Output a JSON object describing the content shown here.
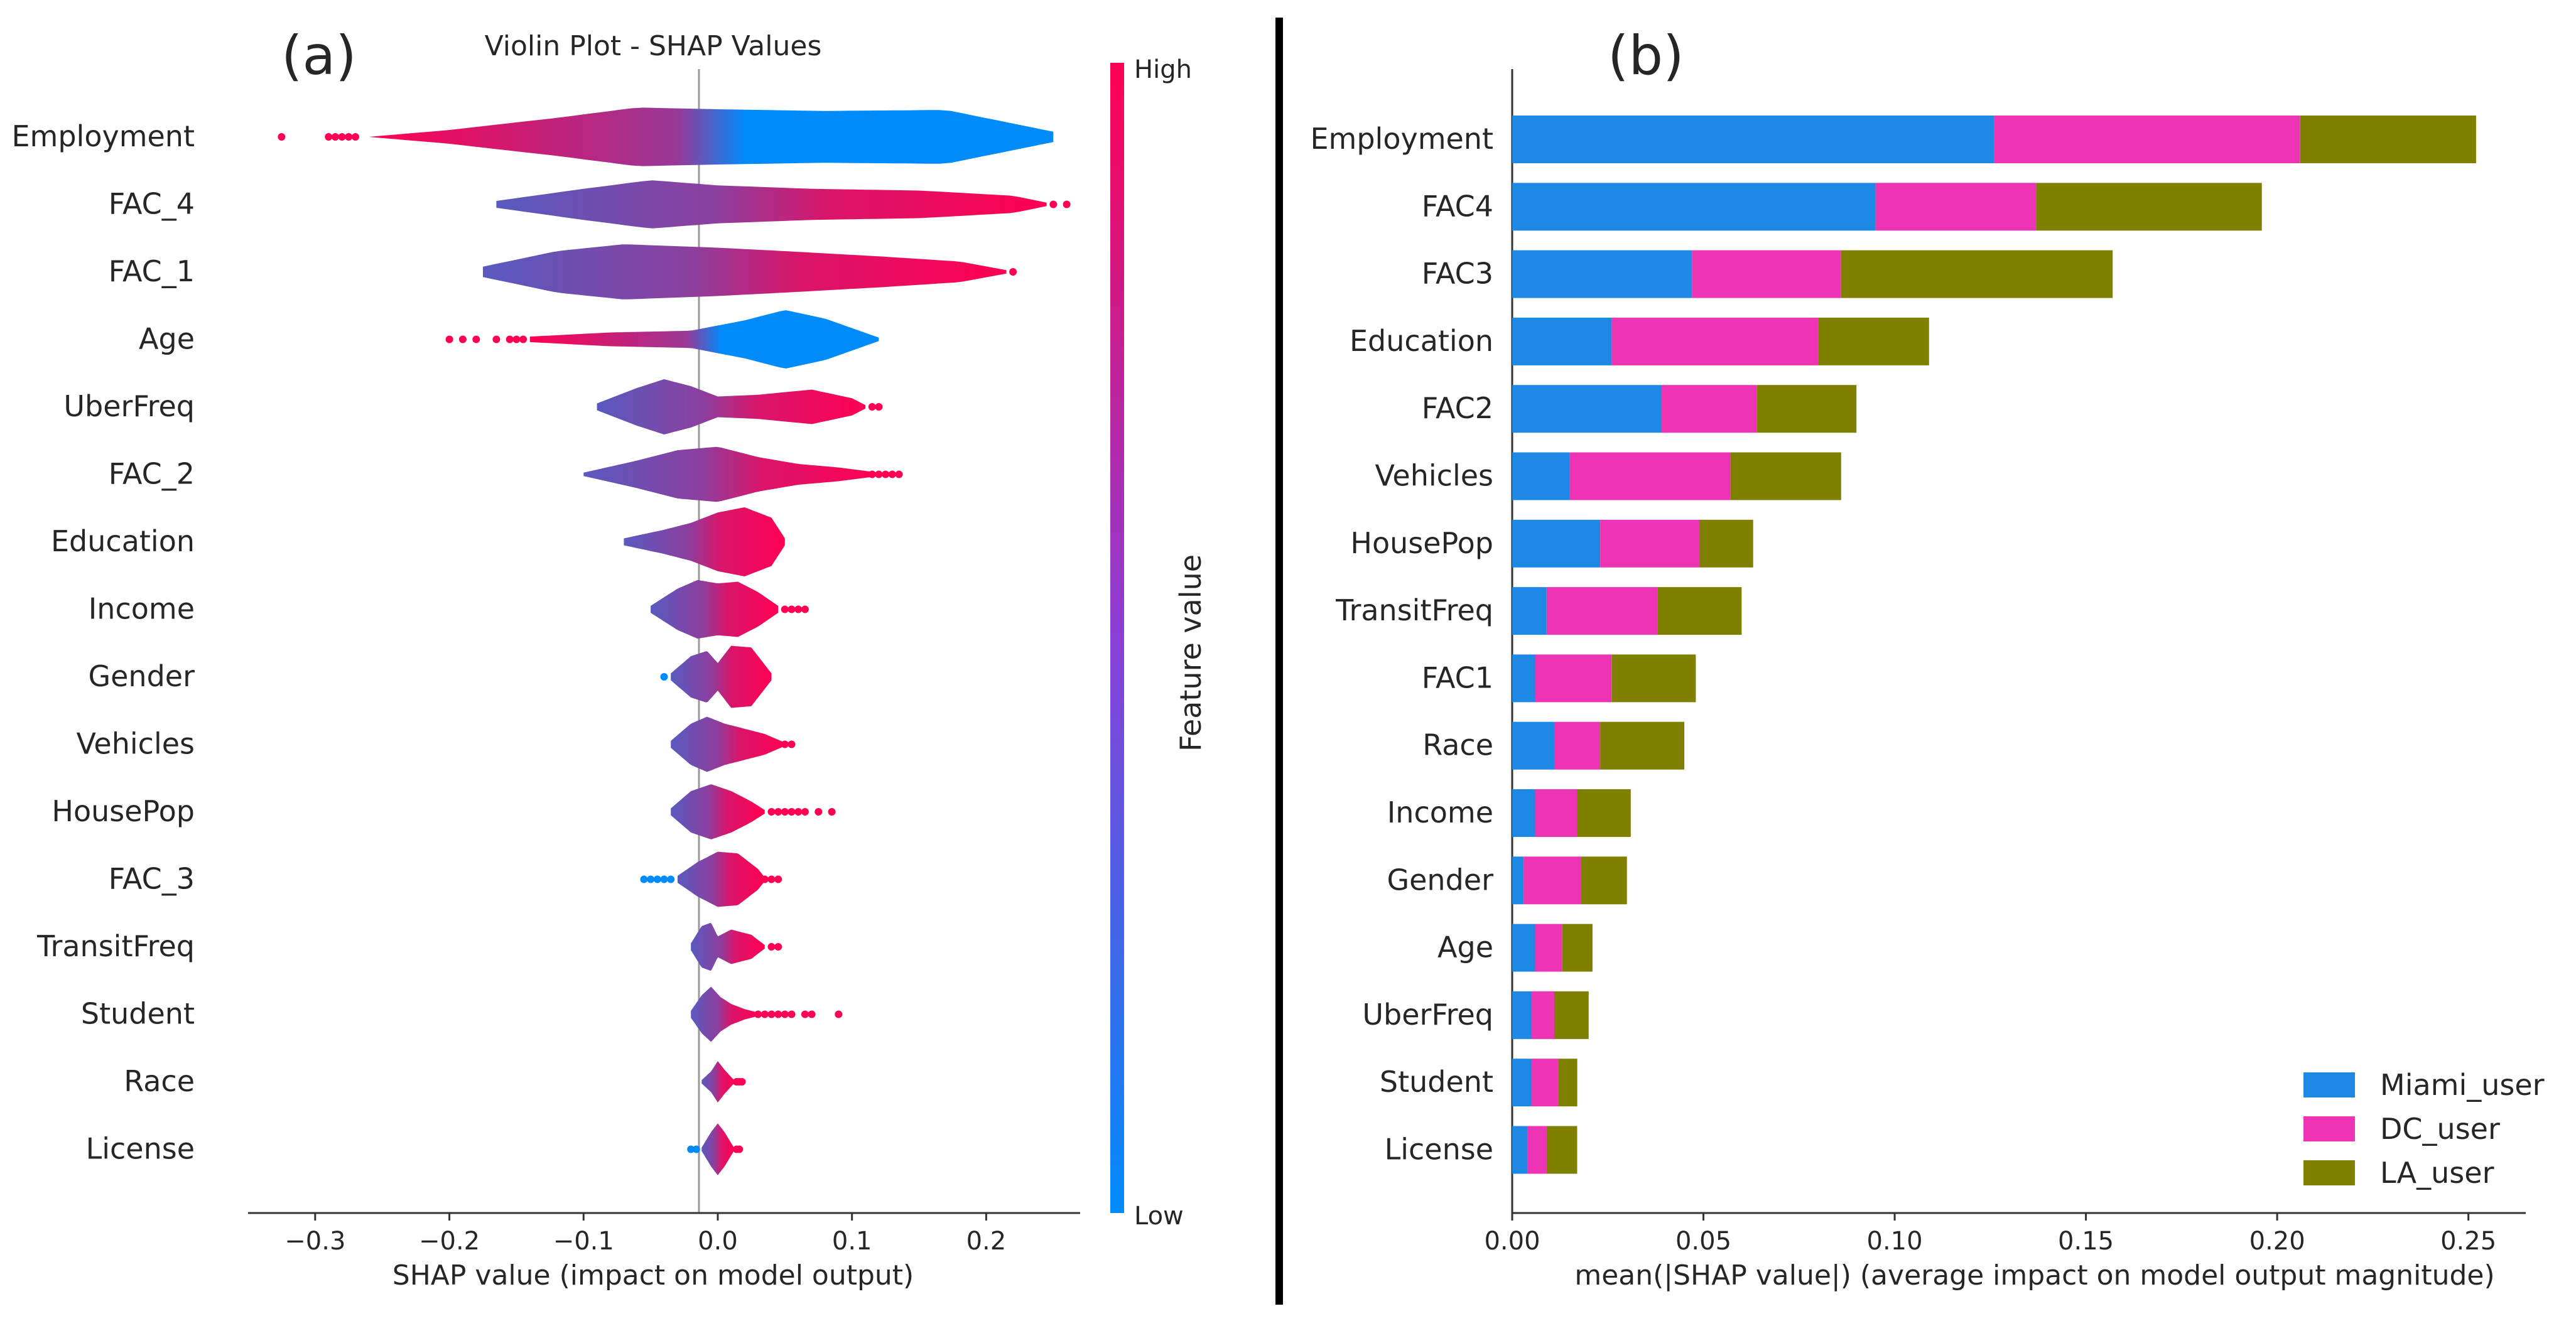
{
  "chart_data": [
    {
      "type": "violin",
      "panel_label": "(a)",
      "title": "Violin Plot - SHAP Values",
      "xlabel": "SHAP value (impact on model output)",
      "xlim": [
        -0.35,
        0.27
      ],
      "xticks": [
        -0.3,
        -0.2,
        -0.1,
        0.0,
        0.1,
        0.2
      ],
      "xtick_labels": [
        "−0.3",
        "−0.2",
        "−0.1",
        "0.0",
        "0.1",
        "0.2"
      ],
      "colorbar": {
        "label": "Feature value",
        "high_label": "High",
        "low_label": "Low",
        "low_color": "#008bfb",
        "high_color": "#ff0052"
      },
      "features": [
        {
          "name": "Employment",
          "min": -0.26,
          "max": 0.25,
          "outliers": [
            -0.325,
            -0.29,
            -0.285,
            -0.28,
            -0.275,
            -0.27
          ],
          "center": -0.065,
          "profile": [
            [
              -0.26,
              0.0
            ],
            [
              -0.2,
              0.2
            ],
            [
              -0.12,
              0.55
            ],
            [
              -0.06,
              0.85
            ],
            [
              0.0,
              0.8
            ],
            [
              0.08,
              0.75
            ],
            [
              0.17,
              0.78
            ],
            [
              0.25,
              0.15
            ]
          ]
        },
        {
          "name": "FAC_4",
          "min": -0.165,
          "max": 0.245,
          "outliers": [
            0.25,
            0.26
          ],
          "center": -0.015,
          "profile": [
            [
              -0.165,
              0.1
            ],
            [
              -0.1,
              0.45
            ],
            [
              -0.05,
              0.7
            ],
            [
              0.0,
              0.55
            ],
            [
              0.07,
              0.45
            ],
            [
              0.15,
              0.4
            ],
            [
              0.22,
              0.25
            ],
            [
              0.245,
              0.05
            ]
          ]
        },
        {
          "name": "FAC_1",
          "min": -0.175,
          "max": 0.215,
          "outliers": [
            0.22
          ],
          "center": -0.005,
          "profile": [
            [
              -0.175,
              0.15
            ],
            [
              -0.12,
              0.6
            ],
            [
              -0.07,
              0.8
            ],
            [
              0.0,
              0.7
            ],
            [
              0.05,
              0.6
            ],
            [
              0.12,
              0.45
            ],
            [
              0.18,
              0.3
            ],
            [
              0.215,
              0.05
            ]
          ]
        },
        {
          "name": "Age",
          "min": -0.14,
          "max": 0.12,
          "outliers": [
            -0.2,
            -0.19,
            -0.18,
            -0.165,
            -0.155,
            -0.15,
            -0.145
          ],
          "center": 0.015,
          "profile": [
            [
              -0.14,
              0.08
            ],
            [
              -0.08,
              0.2
            ],
            [
              -0.02,
              0.25
            ],
            [
              0.02,
              0.55
            ],
            [
              0.05,
              0.85
            ],
            [
              0.08,
              0.6
            ],
            [
              0.12,
              0.05
            ]
          ]
        },
        {
          "name": "UberFreq",
          "min": -0.09,
          "max": 0.11,
          "outliers": [
            0.115,
            0.12
          ],
          "center": -0.005,
          "profile": [
            [
              -0.09,
              0.1
            ],
            [
              -0.06,
              0.55
            ],
            [
              -0.04,
              0.8
            ],
            [
              -0.02,
              0.6
            ],
            [
              0.0,
              0.3
            ],
            [
              0.03,
              0.35
            ],
            [
              0.07,
              0.5
            ],
            [
              0.1,
              0.25
            ],
            [
              0.11,
              0.05
            ]
          ]
        },
        {
          "name": "FAC_2",
          "min": -0.1,
          "max": 0.12,
          "outliers": [
            0.115,
            0.12,
            0.125,
            0.13,
            0.135
          ],
          "center": -0.01,
          "profile": [
            [
              -0.1,
              0.05
            ],
            [
              -0.06,
              0.4
            ],
            [
              -0.03,
              0.7
            ],
            [
              0.0,
              0.8
            ],
            [
              0.03,
              0.5
            ],
            [
              0.06,
              0.3
            ],
            [
              0.09,
              0.2
            ],
            [
              0.12,
              0.05
            ]
          ]
        },
        {
          "name": "Education",
          "min": -0.07,
          "max": 0.05,
          "outliers": [],
          "center": -0.01,
          "profile": [
            [
              -0.07,
              0.1
            ],
            [
              -0.04,
              0.35
            ],
            [
              -0.02,
              0.55
            ],
            [
              0.0,
              0.85
            ],
            [
              0.02,
              1.0
            ],
            [
              0.04,
              0.7
            ],
            [
              0.05,
              0.1
            ]
          ]
        },
        {
          "name": "Income",
          "min": -0.05,
          "max": 0.045,
          "outliers": [
            0.05,
            0.055,
            0.06,
            0.065
          ],
          "center": -0.005,
          "profile": [
            [
              -0.05,
              0.1
            ],
            [
              -0.03,
              0.6
            ],
            [
              -0.015,
              0.85
            ],
            [
              0.0,
              0.75
            ],
            [
              0.015,
              0.8
            ],
            [
              0.03,
              0.5
            ],
            [
              0.045,
              0.1
            ]
          ]
        },
        {
          "name": "Gender",
          "min": -0.035,
          "max": 0.04,
          "outliers": [
            -0.04
          ],
          "center": 0.0,
          "profile": [
            [
              -0.035,
              0.1
            ],
            [
              -0.02,
              0.6
            ],
            [
              -0.008,
              0.75
            ],
            [
              0.0,
              0.4
            ],
            [
              0.01,
              0.9
            ],
            [
              0.025,
              0.85
            ],
            [
              0.04,
              0.1
            ]
          ]
        },
        {
          "name": "Vehicles",
          "min": -0.035,
          "max": 0.05,
          "outliers": [
            0.05,
            0.055
          ],
          "center": -0.005,
          "profile": [
            [
              -0.035,
              0.1
            ],
            [
              -0.02,
              0.6
            ],
            [
              -0.008,
              0.8
            ],
            [
              0.005,
              0.6
            ],
            [
              0.02,
              0.45
            ],
            [
              0.035,
              0.3
            ],
            [
              0.05,
              0.05
            ]
          ]
        },
        {
          "name": "HousePop",
          "min": -0.035,
          "max": 0.035,
          "outliers": [
            0.03,
            0.04,
            0.045,
            0.05,
            0.055,
            0.06,
            0.065,
            0.075,
            0.085
          ],
          "center": 0.0,
          "profile": [
            [
              -0.035,
              0.1
            ],
            [
              -0.02,
              0.6
            ],
            [
              -0.005,
              0.8
            ],
            [
              0.01,
              0.6
            ],
            [
              0.025,
              0.3
            ],
            [
              0.035,
              0.05
            ]
          ]
        },
        {
          "name": "FAC_3",
          "min": -0.03,
          "max": 0.035,
          "outliers": [
            -0.055,
            -0.05,
            -0.045,
            -0.04,
            -0.035,
            0.035,
            0.04,
            0.045
          ],
          "center": 0.0,
          "profile": [
            [
              -0.03,
              0.1
            ],
            [
              -0.015,
              0.5
            ],
            [
              0.0,
              0.8
            ],
            [
              0.015,
              0.75
            ],
            [
              0.03,
              0.3
            ],
            [
              0.035,
              0.05
            ]
          ]
        },
        {
          "name": "TransitFreq",
          "min": -0.02,
          "max": 0.035,
          "outliers": [
            0.04,
            0.045
          ],
          "center": 0.0,
          "profile": [
            [
              -0.02,
              0.1
            ],
            [
              -0.012,
              0.6
            ],
            [
              -0.005,
              0.7
            ],
            [
              0.0,
              0.3
            ],
            [
              0.01,
              0.5
            ],
            [
              0.025,
              0.35
            ],
            [
              0.035,
              0.05
            ]
          ]
        },
        {
          "name": "Student",
          "min": -0.02,
          "max": 0.03,
          "outliers": [
            0.03,
            0.035,
            0.04,
            0.045,
            0.05,
            0.055,
            0.065,
            0.07,
            0.09
          ],
          "center": 0.0,
          "profile": [
            [
              -0.02,
              0.1
            ],
            [
              -0.012,
              0.55
            ],
            [
              -0.005,
              0.8
            ],
            [
              0.002,
              0.5
            ],
            [
              0.01,
              0.3
            ],
            [
              0.02,
              0.15
            ],
            [
              0.03,
              0.05
            ]
          ]
        },
        {
          "name": "Race",
          "min": -0.012,
          "max": 0.012,
          "outliers": [
            0.014,
            0.016,
            0.018
          ],
          "center": 0.0,
          "profile": [
            [
              -0.012,
              0.05
            ],
            [
              -0.005,
              0.3
            ],
            [
              0.0,
              0.6
            ],
            [
              0.005,
              0.35
            ],
            [
              0.012,
              0.05
            ]
          ]
        },
        {
          "name": "License",
          "min": -0.012,
          "max": 0.012,
          "outliers": [
            -0.02,
            -0.016,
            0.014,
            0.016
          ],
          "center": 0.0,
          "profile": [
            [
              -0.012,
              0.05
            ],
            [
              -0.005,
              0.5
            ],
            [
              0.0,
              0.75
            ],
            [
              0.005,
              0.5
            ],
            [
              0.012,
              0.05
            ]
          ]
        }
      ]
    },
    {
      "type": "bar",
      "orientation": "horizontal",
      "stacked": true,
      "panel_label": "(b)",
      "xlabel": "mean(|SHAP value|) (average impact on model output magnitude)",
      "xlim": [
        0,
        0.265
      ],
      "xticks": [
        0.0,
        0.05,
        0.1,
        0.15,
        0.2,
        0.25
      ],
      "xtick_labels": [
        "0.00",
        "0.05",
        "0.10",
        "0.15",
        "0.20",
        "0.25"
      ],
      "categories": [
        "Employment",
        "FAC4",
        "FAC3",
        "Education",
        "FAC2",
        "Vehicles",
        "HousePop",
        "TransitFreq",
        "FAC1",
        "Race",
        "Income",
        "Gender",
        "Age",
        "UberFreq",
        "Student",
        "License"
      ],
      "series": [
        {
          "name": "Miami_user",
          "color": "#1e88e5",
          "values": [
            0.126,
            0.095,
            0.047,
            0.026,
            0.039,
            0.015,
            0.023,
            0.009,
            0.006,
            0.011,
            0.006,
            0.003,
            0.006,
            0.005,
            0.005,
            0.004
          ]
        },
        {
          "name": "DC_user",
          "color": "#ff0052",
          "values": [
            0.08,
            0.042,
            0.039,
            0.054,
            0.025,
            0.042,
            0.026,
            0.029,
            0.02,
            0.012,
            0.011,
            0.015,
            0.007,
            0.006,
            0.007,
            0.005
          ]
        },
        {
          "name": "LA_user",
          "color": "#808000",
          "values": [
            0.046,
            0.059,
            0.071,
            0.029,
            0.026,
            0.029,
            0.014,
            0.022,
            0.022,
            0.022,
            0.014,
            0.012,
            0.008,
            0.009,
            0.005,
            0.008
          ]
        }
      ],
      "legend_position": "lower-right"
    }
  ]
}
